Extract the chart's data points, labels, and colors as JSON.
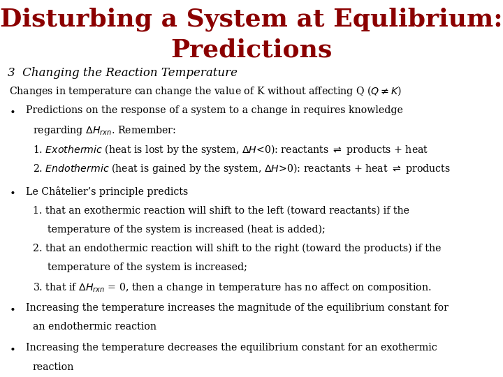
{
  "bg_color": "#ffffff",
  "title_color": "#8B0000",
  "body_color": "#000000"
}
